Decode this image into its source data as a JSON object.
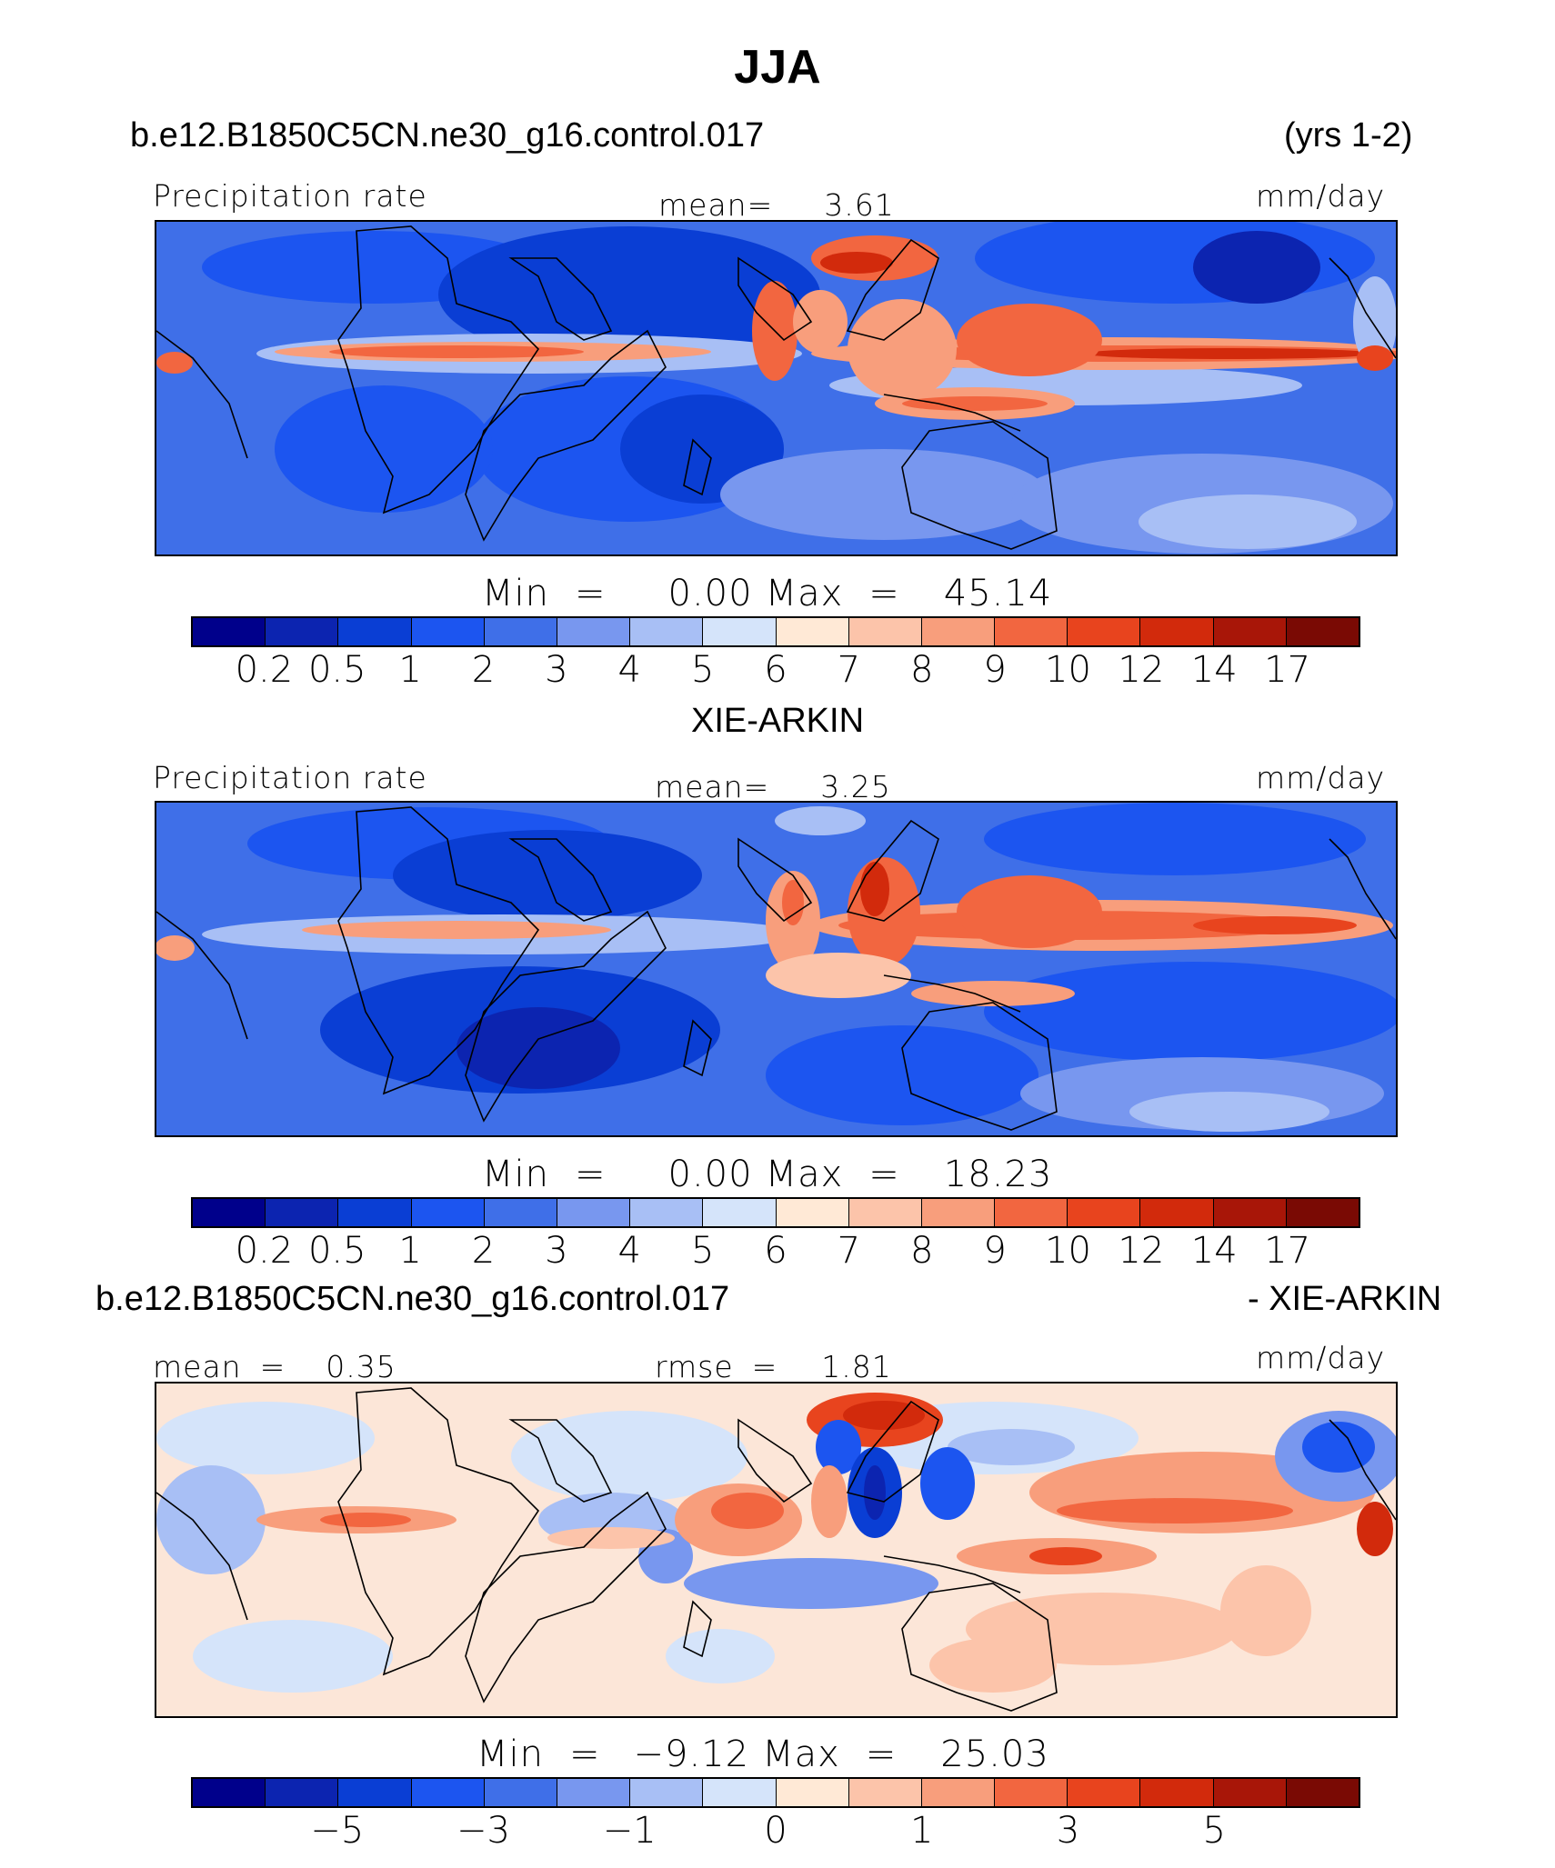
{
  "season_title": "JJA",
  "case_name": "b.e12.B1850C5CN.ne30_g16.control.017",
  "years": "(yrs 1-2)",
  "colors": {
    "precip_scale": [
      "#00008b",
      "#0c24b0",
      "#0a3ed4",
      "#1c55f0",
      "#3f6fe8",
      "#7897ef",
      "#a8bff5",
      "#d5e4fa",
      "#ffe9d6",
      "#fcc4aa",
      "#f89e7c",
      "#f26640",
      "#e8441e",
      "#d22a0c",
      "#a81608",
      "#7a0a04"
    ],
    "diff_scale": [
      "#00008b",
      "#0c24b0",
      "#0a3ed4",
      "#1c55f0",
      "#3f6fe8",
      "#7897ef",
      "#a8bff5",
      "#d5e4fa",
      "#ffe9d6",
      "#fcc4aa",
      "#f89e7c",
      "#f26640",
      "#e8441e",
      "#d22a0c",
      "#a81608",
      "#7a0a04"
    ]
  },
  "panel1": {
    "variable": "Precipitation rate",
    "mean_label": "mean=",
    "mean_value": "3.61",
    "units": "mm/day",
    "min_label": "Min",
    "equals": "=",
    "min_value": "0.00",
    "max_label": "Max",
    "max_value": "45.14",
    "ticks": [
      "0.2",
      "0.5",
      "1",
      "2",
      "3",
      "4",
      "5",
      "6",
      "7",
      "8",
      "9",
      "10",
      "12",
      "14",
      "17"
    ]
  },
  "obs_title": "XIE-ARKIN",
  "panel2": {
    "variable": "Precipitation rate",
    "mean_label": "mean=",
    "mean_value": "3.25",
    "units": "mm/day",
    "min_label": "Min",
    "equals": "=",
    "min_value": "0.00",
    "max_label": "Max",
    "max_value": "18.23",
    "ticks": [
      "0.2",
      "0.5",
      "1",
      "2",
      "3",
      "4",
      "5",
      "6",
      "7",
      "8",
      "9",
      "10",
      "12",
      "14",
      "17"
    ]
  },
  "diff_title_left": "b.e12.B1850C5CN.ne30_g16.control.017",
  "diff_title_right": "- XIE-ARKIN",
  "panel3": {
    "mean_label": "mean",
    "equals": "=",
    "mean_value": "0.35",
    "rmse_label": "rmse",
    "rmse_value": "1.81",
    "units": "mm/day",
    "min_label": "Min",
    "min_value": "−9.12",
    "max_label": "Max",
    "max_value": "25.03",
    "ticks": [
      {
        "label": "−5",
        "boundary": 2
      },
      {
        "label": "−3",
        "boundary": 4
      },
      {
        "label": "−1",
        "boundary": 6
      },
      {
        "label": "0",
        "boundary": 8
      },
      {
        "label": "1",
        "boundary": 10
      },
      {
        "label": "3",
        "boundary": 12
      },
      {
        "label": "5",
        "boundary": 14
      }
    ]
  }
}
